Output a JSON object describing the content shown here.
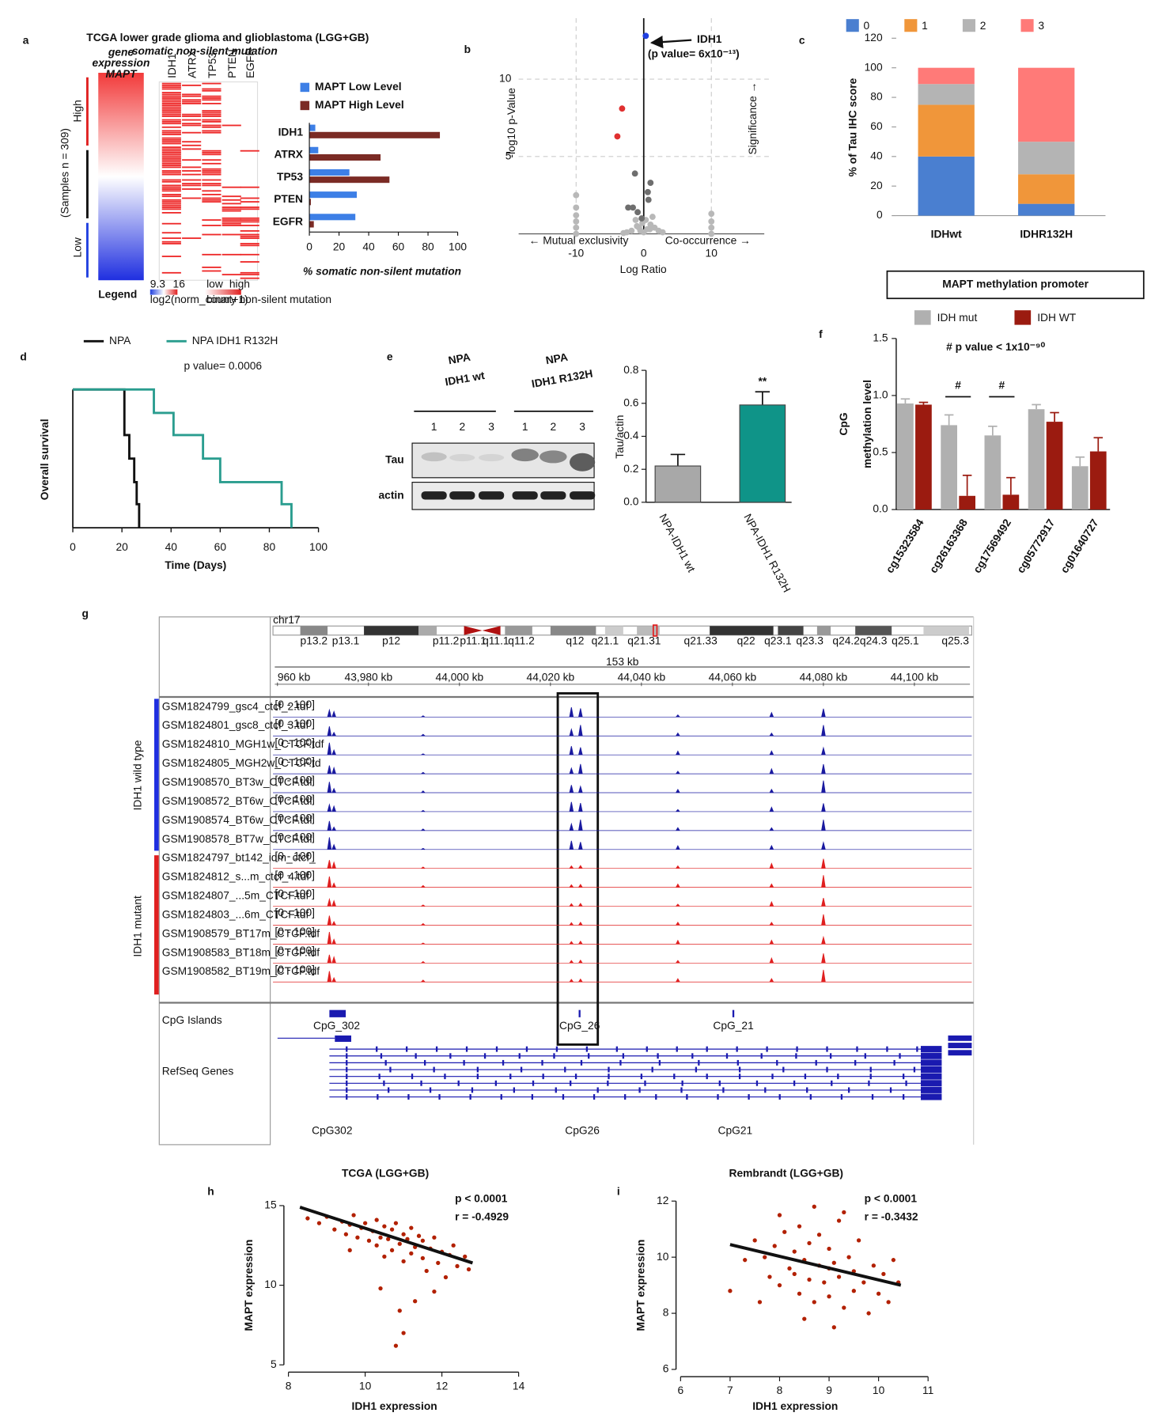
{
  "panel_letters": [
    "a",
    "b",
    "c",
    "d",
    "e",
    "f",
    "g",
    "h",
    "i"
  ],
  "panel_a": {
    "title": "TCGA lower grade glioma and glioblastoma (LGG+GB)",
    "expression_label": [
      "gene",
      "expression",
      "MAPT"
    ],
    "mutation_label": "somatic non-silent mutation",
    "genes": [
      "IDH1",
      "ATRX",
      "TP53",
      "PTEN",
      "EGFR"
    ],
    "high": "High",
    "low": "Low",
    "samples": "(Samples n = 309)",
    "legend": "Legend",
    "legend_min": "9.3",
    "legend_max": "16",
    "legend_low": "low",
    "legend_high": "high",
    "legend_expr_unit": "log2(norm_count+1)",
    "legend_mut_unit": "binary non-silent mutation"
  },
  "panel_e_blot": {
    "groups": [
      [
        "NPA",
        "IDH1 wt"
      ],
      [
        "NPA",
        "IDH1 R132H"
      ]
    ],
    "lanes": [
      "1",
      "2",
      "3",
      "1",
      "2",
      "3"
    ],
    "rows": [
      "Tau",
      "actin"
    ]
  },
  "panel_g": {
    "chromosome": "chr17",
    "bands": [
      "p13.2",
      "p13.1",
      "p12",
      "p11.2",
      "p11.1",
      "q11.1",
      "q11.2",
      "q12",
      "q21.1",
      "q21.31",
      "q21.33",
      "q22",
      "q23.1",
      "q23.3",
      "q24.2",
      "q24.3",
      "q25.1",
      "q25.3"
    ],
    "span": "153 kb",
    "coordinates": [
      "960 kb",
      "43,980 kb",
      "44,000 kb",
      "44,020 kb",
      "44,040 kb",
      "44,060 kb",
      "44,080 kb",
      "44,100 kb"
    ],
    "wild_type_label": "IDH1 wild type",
    "mutant_label": "IDH1 mutant",
    "track_range": "[0 - 100]",
    "wild_type_tracks": [
      "GSM1824799_gsc4_ctcf_2.tdf",
      "GSM1824801_gsc8_ctcf_3.tdf",
      "GSM1824810_MGH1w_CTCF.tdf",
      "GSM1824805_MGH2w_CTCF.td",
      "GSM1908570_BT3w_CTCF.tdf",
      "GSM1908572_BT6w_CTCF.tdf",
      "GSM1908574_BT6w_CTCF.tdf",
      "GSM1908578_BT7w_CTCF.tdf"
    ],
    "mutant_tracks": [
      "GSM1824797_bt142_idm_ctcf_",
      "GSM1824812_s...m_ctcf_4.tdf",
      "GSM1824807_...5m_CTCF.tdf",
      "GSM1824803_...6m_CTCF.tdf",
      "GSM1908579_BT17m_CTCF.tdf",
      "GSM1908583_BT18m_CTCF.tdf",
      "GSM1908582_BT19m_CTCF.tdf"
    ],
    "annotation_tracks": [
      "CpG Islands",
      "RefSeq Genes"
    ],
    "cpg_islands": [
      "CpG_302",
      "CpG_26",
      "CpG_21"
    ],
    "cpg_callouts": [
      "CpG302",
      "CpG26",
      "CpG21"
    ]
  },
  "chart_data": [
    {
      "type": "hbar",
      "categories": [
        "IDH1",
        "ATRX",
        "TP53",
        "PTEN",
        "EGFR"
      ],
      "series": [
        {
          "name": "MAPT Low Level",
          "color": "#3d7fe6",
          "values": [
            4,
            6,
            27,
            32,
            31
          ]
        },
        {
          "name": "MAPT High Level",
          "color": "#7b2b25",
          "values": [
            88,
            48,
            54,
            1,
            3
          ]
        }
      ],
      "xlabel": "% somatic non-silent mutation",
      "xlim": [
        0,
        100
      ],
      "xticks": [
        0,
        20,
        40,
        60,
        80,
        100
      ]
    },
    {
      "type": "volcano",
      "xlabel": "Log Ratio",
      "ylabel": "-log10 p-Value",
      "xlim": [
        -18.5,
        18.5
      ],
      "ylim": [
        0,
        13
      ],
      "xticks": [
        -10,
        0,
        10
      ],
      "yticks": [
        5,
        10
      ],
      "grid": true,
      "left_note": "← Mutual exclusivity",
      "right_note": "Co-occurrence →",
      "side_note": "Significance →",
      "highlight": "IDH1",
      "highlight_note": "(p value= 6x10⁻¹³)",
      "series": [
        {
          "color": "#2040e0",
          "x": [
            0.3
          ],
          "values": [
            12.8
          ]
        },
        {
          "color": "#e03030",
          "x": [
            -3.2,
            -3.9
          ],
          "values": [
            8.1,
            6.3
          ]
        },
        {
          "color": "#6e6e6e",
          "x": [
            -1.3,
            1.0,
            0.6,
            -2.3,
            -1.6,
            -0.9,
            0.7,
            -0.3
          ],
          "values": [
            3.9,
            3.3,
            2.7,
            1.7,
            1.7,
            1.4,
            2.2,
            1.0
          ]
        },
        {
          "color": "#b8b8b8",
          "x": [
            -10,
            -10,
            -10,
            -10,
            -10,
            -10,
            10,
            10,
            10,
            10,
            -0.5,
            0.5,
            -1,
            1,
            -1.8,
            1.6,
            -2.5,
            2.2,
            0,
            -0.2,
            0.3,
            -1.2,
            1.3,
            -3,
            2.8,
            -0.7,
            0.9
          ],
          "values": [
            0,
            0.4,
            0.8,
            1.2,
            1.7,
            2.5,
            0,
            0.4,
            0.8,
            1.3,
            0.2,
            0.3,
            0.5,
            0.6,
            0.2,
            0.4,
            0.1,
            0.2,
            0.1,
            0.7,
            0.9,
            0.9,
            1.1,
            0.05,
            0.1,
            0.4,
            0.3
          ]
        }
      ]
    },
    {
      "type": "stacked_bar",
      "categories": [
        "IDHwt",
        "IDHR132H"
      ],
      "ylabel": "% of Tau IHC score",
      "ylim": [
        0,
        120
      ],
      "yticks": [
        0,
        20,
        40,
        60,
        80,
        100,
        120
      ],
      "series": [
        {
          "name": "0",
          "color": "#4a7fd0",
          "values": [
            40,
            8
          ]
        },
        {
          "name": "1",
          "color": "#f0963a",
          "values": [
            35,
            20
          ]
        },
        {
          "name": "2",
          "color": "#b4b4b4",
          "values": [
            14,
            22
          ]
        },
        {
          "name": "3",
          "color": "#ff7a78",
          "values": [
            11,
            50
          ]
        }
      ]
    },
    {
      "type": "step",
      "xlabel": "Time (Days)",
      "ylabel": "Overall survival",
      "annotation": "p value= 0.0006",
      "xlim": [
        0,
        100
      ],
      "xticks": [
        0,
        20,
        40,
        60,
        80,
        100
      ],
      "ylim": [
        0,
        100
      ],
      "series": [
        {
          "name": "NPA",
          "color": "#111111",
          "x": [
            0,
            21,
            21,
            23,
            23,
            25,
            25,
            26,
            26,
            27,
            27
          ],
          "values": [
            100,
            100,
            67,
            67,
            50,
            50,
            33,
            33,
            17,
            17,
            0
          ]
        },
        {
          "name": "NPA IDH1 R132H",
          "color": "#2a9d8f",
          "x": [
            0,
            33,
            33,
            41,
            41,
            53,
            53,
            60,
            60,
            85,
            85,
            89,
            89
          ],
          "values": [
            100,
            100,
            83,
            83,
            67,
            67,
            50,
            50,
            33,
            33,
            17,
            17,
            0
          ]
        }
      ]
    },
    {
      "type": "error_bar",
      "categories": [
        "NPA-IDH1 wt",
        "NPA-IDH1 R132H"
      ],
      "ylabel": "Tau/actin",
      "values": [
        0.22,
        0.59
      ],
      "errors": [
        0.07,
        0.08
      ],
      "colors": [
        "#a8a8a8",
        "#0f9488"
      ],
      "annotation": "**",
      "ylim": [
        0,
        0.8
      ],
      "yticks": [
        {
          "value": 0,
          "label": "0.0"
        },
        0.2,
        0.4,
        0.6,
        0.8
      ]
    },
    {
      "type": "grouped_error_bar",
      "title": "MAPT methylation promoter",
      "ylabel": [
        "CpG",
        "methylation level"
      ],
      "annotation": "# p value < 1x10⁻⁹⁰",
      "marker": "#",
      "marked": [
        1,
        2
      ],
      "categories": [
        "cg15323584",
        "cg26163368",
        "cg17569492",
        "cg05772917",
        "cg01640727"
      ],
      "ylim": [
        0,
        1.5
      ],
      "yticks": [
        {
          "value": 0,
          "label": "0.0"
        },
        0.5,
        {
          "value": 1,
          "label": "1.0"
        },
        1.5
      ],
      "series": [
        {
          "name": "IDH mut",
          "color": "#b0b0b0",
          "values": [
            0.93,
            0.74,
            0.65,
            0.88,
            0.38
          ],
          "errors": [
            0.04,
            0.09,
            0.08,
            0.04,
            0.08
          ]
        },
        {
          "name": "IDH WT",
          "color": "#9b1b10",
          "values": [
            0.92,
            0.12,
            0.13,
            0.77,
            0.51
          ],
          "errors": [
            0.02,
            0.18,
            0.15,
            0.08,
            0.12
          ]
        }
      ]
    },
    {
      "type": "scatter",
      "title": "TCGA (LGG+GB)",
      "xlabel": "IDH1 expression",
      "ylabel": "MAPT expression",
      "annotation": [
        "p < 0.0001",
        "r = -0.4929"
      ],
      "color": "#b22000",
      "xlim": [
        8,
        14
      ],
      "xticks": [
        8,
        10,
        12,
        14
      ],
      "ylim": [
        5,
        15
      ],
      "yticks": [
        5,
        10,
        15
      ],
      "fit": {
        "x": [
          8.3,
          12.8
        ],
        "y": [
          14.9,
          11.4
        ]
      },
      "x": [
        8.5,
        8.8,
        9.0,
        9.2,
        9.4,
        9.5,
        9.6,
        9.7,
        9.8,
        9.9,
        10.0,
        10.1,
        10.2,
        10.3,
        10.3,
        10.4,
        10.5,
        10.5,
        10.6,
        10.7,
        10.7,
        10.8,
        10.9,
        11.0,
        11.0,
        11.1,
        11.2,
        11.2,
        11.3,
        11.4,
        11.5,
        11.5,
        11.6,
        11.7,
        11.8,
        11.9,
        12.0,
        12.1,
        12.2,
        12.3,
        12.4,
        12.6,
        12.7,
        10.8,
        11.0,
        11.3,
        10.4,
        9.6,
        11.8,
        10.9
      ],
      "values": [
        14.2,
        13.9,
        14.3,
        13.5,
        14.0,
        13.2,
        13.8,
        14.4,
        13.0,
        13.6,
        13.9,
        12.8,
        13.4,
        14.1,
        12.5,
        13.0,
        13.7,
        11.8,
        12.9,
        13.5,
        12.2,
        13.9,
        12.6,
        13.2,
        11.5,
        12.9,
        13.6,
        12.0,
        12.4,
        13.1,
        11.7,
        12.8,
        10.9,
        12.3,
        13.0,
        11.4,
        12.1,
        10.5,
        11.9,
        12.5,
        11.2,
        11.8,
        11.0,
        6.2,
        7.0,
        9.0,
        9.8,
        12.2,
        9.6,
        8.4
      ]
    },
    {
      "type": "scatter",
      "title": "Rembrandt (LGG+GB)",
      "xlabel": "IDH1 expression",
      "ylabel": "MAPT expression",
      "annotation": [
        "p < 0.0001",
        "r = -0.3432"
      ],
      "color": "#b22000",
      "xlim": [
        6,
        11
      ],
      "xticks": [
        6,
        7,
        8,
        9,
        10,
        11
      ],
      "ylim": [
        6,
        12
      ],
      "yticks": [
        6,
        8,
        10,
        12
      ],
      "fit": {
        "x": [
          7.0,
          10.45
        ],
        "y": [
          10.45,
          9.0
        ]
      },
      "x": [
        7.0,
        7.3,
        7.5,
        7.7,
        7.8,
        7.9,
        8.0,
        8.1,
        8.2,
        8.3,
        8.4,
        8.4,
        8.5,
        8.6,
        8.6,
        8.7,
        8.8,
        8.8,
        8.9,
        9.0,
        9.0,
        9.1,
        9.2,
        9.2,
        9.3,
        9.4,
        9.5,
        9.5,
        9.6,
        9.7,
        9.8,
        9.9,
        10.0,
        10.1,
        10.2,
        10.4,
        8.5,
        9.1,
        8.0,
        9.3,
        8.7,
        7.6,
        10.3,
        8.3,
        9.0
      ],
      "values": [
        8.8,
        9.9,
        10.6,
        10.0,
        9.3,
        10.4,
        9.0,
        10.9,
        9.6,
        10.2,
        8.7,
        11.1,
        9.9,
        10.5,
        9.2,
        8.4,
        10.8,
        9.7,
        9.1,
        10.3,
        8.6,
        9.8,
        11.3,
        9.3,
        8.2,
        10.0,
        9.5,
        8.8,
        10.6,
        9.1,
        8.0,
        9.7,
        8.7,
        9.4,
        8.4,
        9.1,
        7.8,
        7.5,
        11.5,
        11.6,
        11.8,
        8.4,
        9.9,
        9.4,
        9.6
      ]
    }
  ]
}
